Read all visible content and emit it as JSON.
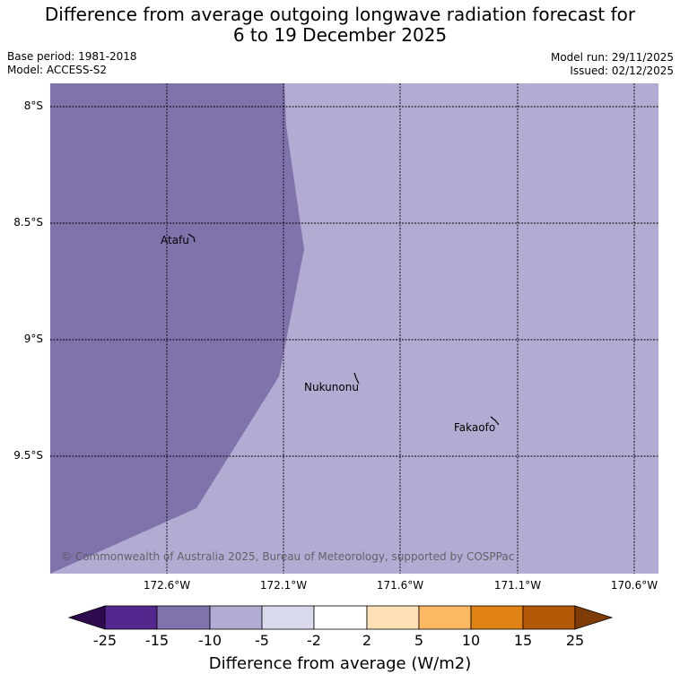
{
  "title": {
    "line1": "Difference from average outgoing longwave radiation forecast for",
    "line2": "6 to 19 December 2025"
  },
  "meta": {
    "base_period": "Base period: 1981-2018",
    "model": "Model: ACCESS-S2",
    "model_run": "Model run: 29/11/2025",
    "issued": "Issued: 02/12/2025"
  },
  "map": {
    "lat_labels": [
      "8°S",
      "8.5°S",
      "9°S",
      "9.5°S"
    ],
    "lon_labels": [
      "172.6°W",
      "172.1°W",
      "171.6°W",
      "171.1°W",
      "170.6°W"
    ],
    "places": [
      "Atafu",
      "Nukunonu",
      "Fakaofo"
    ],
    "copyright": "© Commonwealth of Australia 2025, Bureau of Meteorology, supported by COSPPac"
  },
  "colorbar": {
    "title": "Difference from average (W/m2)",
    "ticks": [
      "-25",
      "-15",
      "-10",
      "-5",
      "-2",
      "2",
      "5",
      "10",
      "15",
      "25"
    ],
    "colors": {
      "lt_minus25": "#2e0a4e",
      "m25_m15": "#54278f",
      "m15_m10": "#8073ac",
      "m10_m5": "#b2abd2",
      "m5_m2": "#d8daeb",
      "m2_2": "#ffffff",
      "p2_5": "#fee0b6",
      "p5_10": "#fdb863",
      "p10_15": "#e08214",
      "p15_25": "#b35806",
      "gt_25": "#7f3b08"
    }
  }
}
